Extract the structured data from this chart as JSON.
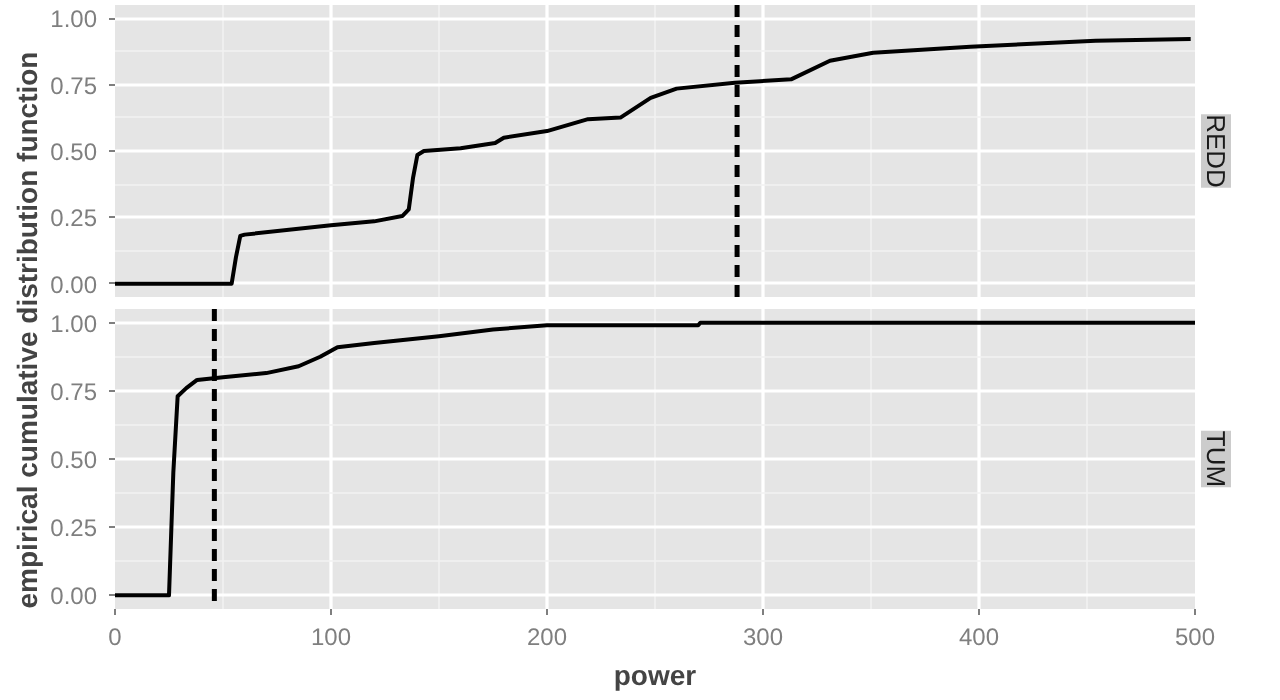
{
  "chart_data": [
    {
      "type": "line",
      "title": "REDD",
      "ylabel": "empirical cumulative distribution function",
      "tick_labels": "y",
      "grid": true,
      "line_style": "solid",
      "marker": "none",
      "x": [
        0,
        54,
        56,
        58,
        60,
        100,
        120,
        133,
        136,
        138,
        140,
        143,
        160,
        176,
        180,
        200,
        219,
        234,
        248,
        260,
        287,
        313,
        331,
        351,
        396,
        454,
        498
      ],
      "series": [
        {
          "color": "#000000",
          "values": [
            0,
            0,
            0.1,
            0.18,
            0.185,
            0.22,
            0.235,
            0.255,
            0.28,
            0.4,
            0.485,
            0.5,
            0.51,
            0.53,
            0.55,
            0.575,
            0.62,
            0.626,
            0.7,
            0.735,
            0.757,
            0.77,
            0.84,
            0.87,
            0.893,
            0.915,
            0.922
          ]
        }
      ],
      "xlim": [
        0,
        500
      ],
      "ylim": [
        -0.05,
        1.05
      ],
      "xticks": [
        0,
        100,
        200,
        300,
        400,
        500
      ],
      "yticks": [
        {
          "value": 0,
          "label": "0.00"
        },
        {
          "value": 0.25,
          "label": "0.25"
        },
        {
          "value": 0.5,
          "label": "0.50"
        },
        {
          "value": 0.75,
          "label": "0.75"
        },
        {
          "value": 1,
          "label": "1.00"
        }
      ],
      "ref_lines": [
        {
          "axis": "x",
          "value": 288,
          "color": "#000000",
          "line_style": "dashed"
        }
      ]
    },
    {
      "type": "line",
      "title": "TUM",
      "xlabel": "power",
      "grid": true,
      "line_style": "solid",
      "marker": "none",
      "x": [
        0,
        25,
        27,
        29,
        33,
        38,
        50,
        70,
        85,
        95,
        103,
        120,
        150,
        175,
        200,
        270,
        271,
        500
      ],
      "series": [
        {
          "color": "#000000",
          "values": [
            0,
            0,
            0.45,
            0.73,
            0.76,
            0.79,
            0.8,
            0.815,
            0.84,
            0.875,
            0.91,
            0.925,
            0.95,
            0.975,
            0.99,
            0.99,
            1.0,
            1.0
          ]
        }
      ],
      "xlim": [
        0,
        500
      ],
      "ylim": [
        -0.05,
        1.05
      ],
      "xticks": [
        0,
        100,
        200,
        300,
        400,
        500
      ],
      "yticks": [
        {
          "value": 0,
          "label": "0.00"
        },
        {
          "value": 0.25,
          "label": "0.25"
        },
        {
          "value": 0.5,
          "label": "0.50"
        },
        {
          "value": 0.75,
          "label": "0.75"
        },
        {
          "value": 1,
          "label": "1.00"
        }
      ],
      "ref_lines": [
        {
          "axis": "x",
          "value": 46,
          "color": "#000000",
          "line_style": "dashed"
        }
      ]
    }
  ]
}
